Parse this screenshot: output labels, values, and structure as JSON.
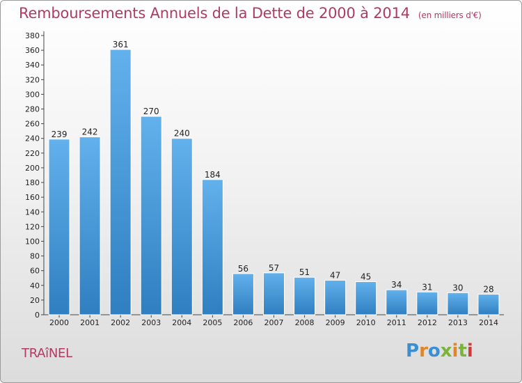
{
  "header": {
    "title": "Remboursements Annuels de la Dette de 2000 à 2014",
    "unit": "(en milliers d'€)"
  },
  "footer": {
    "commune": "TRAîNEL",
    "brand": "Proxiti"
  },
  "colors": {
    "title": "#b03a62",
    "bar_top": "#62b1ec",
    "bar_bottom": "#2f7fc1",
    "brand_letters": [
      "#3a8fd4",
      "#e0862a",
      "#3a8fd4",
      "#7bb43a",
      "#e0862a",
      "#7bb43a",
      "#d43a3a"
    ]
  },
  "chart_data": {
    "type": "bar",
    "title": "Remboursements Annuels de la Dette de 2000 à 2014",
    "unit": "(en milliers d'€)",
    "categories": [
      "2000",
      "2001",
      "2002",
      "2003",
      "2004",
      "2005",
      "2006",
      "2007",
      "2008",
      "2009",
      "2010",
      "2011",
      "2012",
      "2013",
      "2014"
    ],
    "values": [
      239,
      242,
      361,
      270,
      240,
      184,
      56,
      57,
      51,
      47,
      45,
      34,
      31,
      30,
      28
    ],
    "ylim": [
      0,
      380
    ],
    "ytick_step": 20,
    "grid": false,
    "legend": "none"
  }
}
